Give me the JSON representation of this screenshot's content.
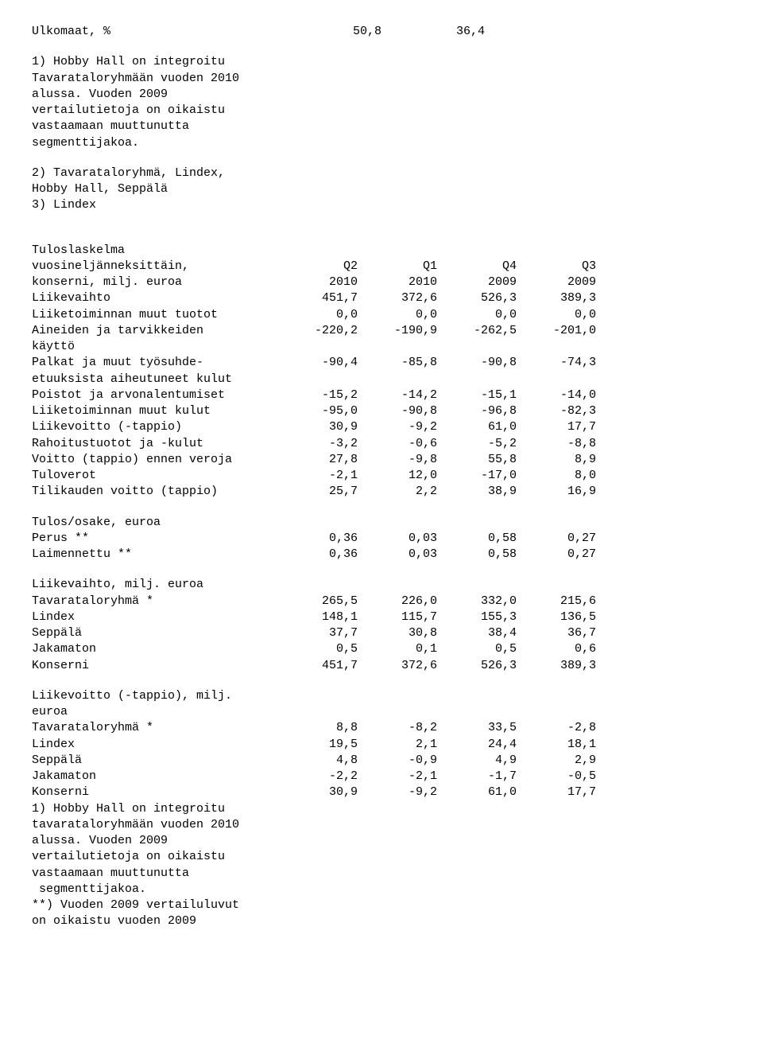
{
  "top": {
    "row": {
      "label": "Ulkomaat, %",
      "c1": "50,8",
      "c2": "36,4"
    }
  },
  "notes1": {
    "n1": "1) Hobby Hall on integroitu\nTavarataloryhmään vuoden 2010\nalussa. Vuoden 2009\nvertailutietoja on oikaistu\nvastaamaan muuttunutta\nsegmenttijakoa.",
    "n2": "2) Tavarataloryhmä, Lindex,\nHobby Hall, Seppälä\n3) Lindex"
  },
  "tuloslaskelma": {
    "heading1": "Tuloslaskelma",
    "heading2": "vuosineljänneksittäin,",
    "heading3": "konserni, milj. euroa",
    "h": {
      "c1": "Q2",
      "c2": "Q1",
      "c3": "Q4",
      "c4": "Q3"
    },
    "y": {
      "c1": "2010",
      "c2": "2010",
      "c3": "2009",
      "c4": "2009"
    },
    "rows": [
      {
        "label": "Liikevaihto",
        "c1": "451,7",
        "c2": "372,6",
        "c3": "526,3",
        "c4": "389,3"
      },
      {
        "label": "Liiketoiminnan muut tuotot",
        "c1": "0,0",
        "c2": "0,0",
        "c3": "0,0",
        "c4": "0,0"
      },
      {
        "label": "Aineiden ja tarvikkeiden",
        "c1": "-220,2",
        "c2": "-190,9",
        "c3": "-262,5",
        "c4": "-201,0"
      },
      {
        "label": "käyttö",
        "c1": "",
        "c2": "",
        "c3": "",
        "c4": ""
      },
      {
        "label": "Palkat ja muut työsuhde-",
        "c1": "-90,4",
        "c2": "-85,8",
        "c3": "-90,8",
        "c4": "-74,3"
      },
      {
        "label": "etuuksista aiheutuneet kulut",
        "c1": "",
        "c2": "",
        "c3": "",
        "c4": ""
      },
      {
        "label": "Poistot ja arvonalentumiset",
        "c1": "-15,2",
        "c2": "-14,2",
        "c3": "-15,1",
        "c4": "-14,0"
      },
      {
        "label": "Liiketoiminnan muut kulut",
        "c1": "-95,0",
        "c2": "-90,8",
        "c3": "-96,8",
        "c4": "-82,3"
      },
      {
        "label": "Liikevoitto (-tappio)",
        "c1": "30,9",
        "c2": "-9,2",
        "c3": "61,0",
        "c4": "17,7"
      },
      {
        "label": "Rahoitustuotot ja -kulut",
        "c1": "-3,2",
        "c2": "-0,6",
        "c3": "-5,2",
        "c4": "-8,8"
      },
      {
        "label": "Voitto (tappio) ennen veroja",
        "c1": "27,8",
        "c2": "-9,8",
        "c3": "55,8",
        "c4": "8,9"
      },
      {
        "label": "Tuloverot",
        "c1": "-2,1",
        "c2": "12,0",
        "c3": "-17,0",
        "c4": "8,0"
      },
      {
        "label": "Tilikauden voitto (tappio)",
        "c1": "25,7",
        "c2": "2,2",
        "c3": "38,9",
        "c4": "16,9"
      }
    ]
  },
  "tulos_osake": {
    "heading": "Tulos/osake, euroa",
    "rows": [
      {
        "label": "Perus **",
        "c1": "0,36",
        "c2": "0,03",
        "c3": "0,58",
        "c4": "0,27"
      },
      {
        "label": "Laimennettu **",
        "c1": "0,36",
        "c2": "0,03",
        "c3": "0,58",
        "c4": "0,27"
      }
    ]
  },
  "liikevaihto": {
    "heading": "Liikevaihto, milj. euroa",
    "rows": [
      {
        "label": "Tavarataloryhmä *",
        "c1": "265,5",
        "c2": "226,0",
        "c3": "332,0",
        "c4": "215,6"
      },
      {
        "label": "Lindex",
        "c1": "148,1",
        "c2": "115,7",
        "c3": "155,3",
        "c4": "136,5"
      },
      {
        "label": "Seppälä",
        "c1": "37,7",
        "c2": "30,8",
        "c3": "38,4",
        "c4": "36,7"
      },
      {
        "label": "Jakamaton",
        "c1": "0,5",
        "c2": "0,1",
        "c3": "0,5",
        "c4": "0,6"
      },
      {
        "label": "Konserni",
        "c1": "451,7",
        "c2": "372,6",
        "c3": "526,3",
        "c4": "389,3"
      }
    ]
  },
  "liikevoitto": {
    "heading": "Liikevoitto (-tappio), milj.\neuroa",
    "rows": [
      {
        "label": "Tavarataloryhmä *",
        "c1": "8,8",
        "c2": "-8,2",
        "c3": "33,5",
        "c4": "-2,8"
      },
      {
        "label": "Lindex",
        "c1": "19,5",
        "c2": "2,1",
        "c3": "24,4",
        "c4": "18,1"
      },
      {
        "label": "Seppälä",
        "c1": "4,8",
        "c2": "-0,9",
        "c3": "4,9",
        "c4": "2,9"
      },
      {
        "label": "Jakamaton",
        "c1": "-2,2",
        "c2": "-2,1",
        "c3": "-1,7",
        "c4": "-0,5"
      },
      {
        "label": "Konserni",
        "c1": "30,9",
        "c2": "-9,2",
        "c3": "61,0",
        "c4": "17,7"
      }
    ]
  },
  "notes2": {
    "n1": "1) Hobby Hall on integroitu\ntavarataloryhmään vuoden 2010\nalussa. Vuoden 2009\nvertailutietoja on oikaistu\nvastaamaan muuttunutta\n segmenttijakoa.",
    "n2": "**) Vuoden 2009 vertailuluvut\non oikaistu vuoden 2009"
  }
}
